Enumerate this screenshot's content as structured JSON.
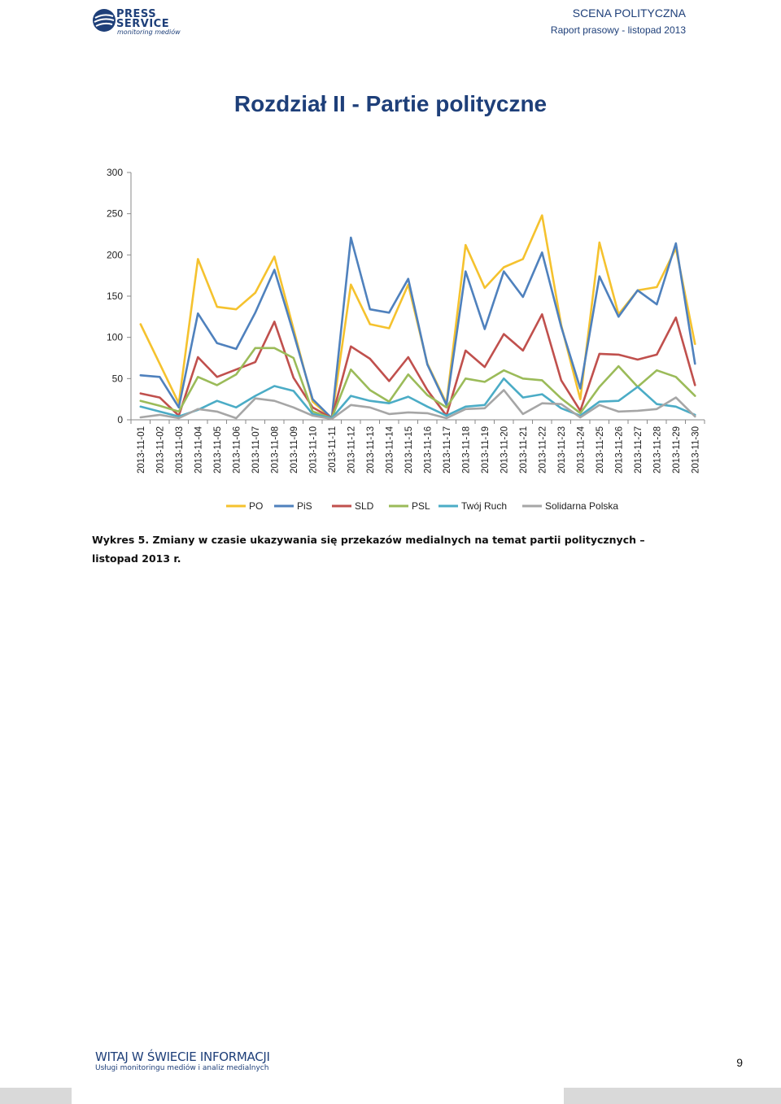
{
  "header": {
    "logo_line1": "PRESS",
    "logo_line2": "SERVICE",
    "logo_line3": "monitoring mediów",
    "section": "SCENA POLITYCZNA",
    "report": "Raport prasowy - listopad 2013"
  },
  "page_title": "Rozdział II - Partie polityczne",
  "caption": "Wykres 5. Zmiany w czasie ukazywania się przekazów medialnych na temat partii politycznych – listopad 2013 r.",
  "footer": {
    "brand": "WITAJ W ŚWIECIE INFORMACJI",
    "tagline": "Usługi monitoringu mediów i analiz medialnych",
    "page_number": "9"
  },
  "colors": {
    "accent": "#1e3f79",
    "footer_accent": "#c0152a"
  },
  "chart_data": {
    "type": "line",
    "title": "",
    "xlabel": "",
    "ylabel": "",
    "ylim": [
      0,
      300
    ],
    "yticks": [
      0,
      50,
      100,
      150,
      200,
      250,
      300
    ],
    "grid": false,
    "legend": "bottom",
    "categories": [
      "2013-11-01",
      "2013-11-02",
      "2013-11-03",
      "2013-11-04",
      "2013-11-05",
      "2013-11-06",
      "2013-11-07",
      "2013-11-08",
      "2013-11-09",
      "2013-11-10",
      "2013-11-11",
      "2013-11-12",
      "2013-11-13",
      "2013-11-14",
      "2013-11-15",
      "2013-11-16",
      "2013-11-17",
      "2013-11-18",
      "2013-11-19",
      "2013-11-20",
      "2013-11-21",
      "2013-11-22",
      "2013-11-23",
      "2013-11-24",
      "2013-11-25",
      "2013-11-26",
      "2013-11-27",
      "2013-11-28",
      "2013-11-29",
      "2013-11-30"
    ],
    "series": [
      {
        "name": "PO",
        "color": "#f5c22e",
        "values": [
          116,
          68,
          20,
          195,
          137,
          134,
          154,
          198,
          110,
          22,
          2,
          164,
          116,
          111,
          164,
          68,
          20,
          212,
          160,
          185,
          195,
          248,
          115,
          25,
          215,
          128,
          157,
          161,
          208,
          92
        ]
      },
      {
        "name": "PiS",
        "color": "#4f81bd",
        "values": [
          54,
          52,
          15,
          129,
          93,
          86,
          130,
          182,
          105,
          25,
          2,
          221,
          134,
          130,
          171,
          67,
          18,
          180,
          110,
          180,
          149,
          203,
          113,
          38,
          174,
          125,
          157,
          140,
          214,
          68
        ]
      },
      {
        "name": "SLD",
        "color": "#c0504d",
        "values": [
          32,
          27,
          5,
          76,
          52,
          61,
          70,
          119,
          51,
          15,
          2,
          89,
          74,
          47,
          76,
          36,
          5,
          84,
          64,
          104,
          84,
          128,
          48,
          11,
          80,
          79,
          73,
          79,
          124,
          42
        ]
      },
      {
        "name": "PSL",
        "color": "#9bbb59",
        "values": [
          23,
          17,
          10,
          52,
          42,
          55,
          87,
          87,
          75,
          10,
          2,
          61,
          36,
          22,
          55,
          30,
          15,
          50,
          46,
          60,
          50,
          48,
          26,
          8,
          40,
          65,
          40,
          60,
          52,
          29
        ]
      },
      {
        "name": "Twój Ruch",
        "color": "#4bacc6",
        "values": [
          16,
          10,
          4,
          12,
          23,
          15,
          29,
          41,
          35,
          7,
          2,
          29,
          23,
          20,
          28,
          16,
          5,
          16,
          18,
          50,
          27,
          31,
          14,
          5,
          22,
          23,
          40,
          19,
          16,
          6
        ]
      },
      {
        "name": "Solidarna Polska",
        "color": "#a6a6a6",
        "values": [
          3,
          6,
          2,
          13,
          10,
          2,
          26,
          23,
          15,
          5,
          1,
          18,
          15,
          7,
          9,
          8,
          2,
          13,
          14,
          36,
          7,
          20,
          19,
          3,
          18,
          10,
          11,
          13,
          27,
          4
        ]
      }
    ]
  }
}
